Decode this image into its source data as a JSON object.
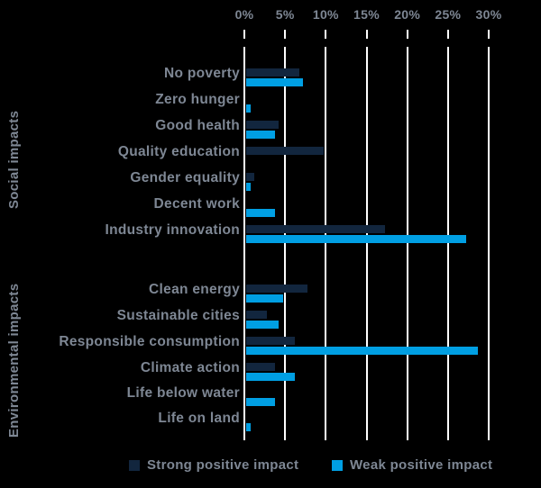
{
  "chart_data": {
    "type": "bar",
    "orientation": "horizontal",
    "x_axis": {
      "position": "top",
      "ticks": [
        "0%",
        "5%",
        "10%",
        "15%",
        "20%",
        "25%",
        "30%"
      ],
      "min": 0,
      "max": 30,
      "unit": "%"
    },
    "grid": true,
    "legend_position": "bottom",
    "series": [
      {
        "name": "Strong positive impact",
        "color": "#12263E"
      },
      {
        "name": "Weak positive impact",
        "color": "#009FE3"
      }
    ],
    "groups": [
      {
        "label": "Social impacts",
        "rows": [
          {
            "category": "No poverty",
            "strong": 6.5,
            "weak": 7
          },
          {
            "category": "Zero hunger",
            "strong": 0,
            "weak": 0.5
          },
          {
            "category": "Good health",
            "strong": 4,
            "weak": 3.5
          },
          {
            "category": "Quality education",
            "strong": 9.5,
            "weak": 0
          },
          {
            "category": "Gender equality",
            "strong": 1,
            "weak": 0.5
          },
          {
            "category": "Decent work",
            "strong": 0,
            "weak": 3.5
          },
          {
            "category": "Industry innovation",
            "strong": 17,
            "weak": 27
          }
        ]
      },
      {
        "label": "Environmental impacts",
        "rows": [
          {
            "category": "Clean energy",
            "strong": 7.5,
            "weak": 4.5
          },
          {
            "category": "Sustainable cities",
            "strong": 2.5,
            "weak": 4
          },
          {
            "category": "Responsible consumption",
            "strong": 6,
            "weak": 28.5
          },
          {
            "category": "Climate action",
            "strong": 3.5,
            "weak": 6
          },
          {
            "category": "Life below water",
            "strong": 0,
            "weak": 3.5
          },
          {
            "category": "Life on land",
            "strong": 0,
            "weak": 0.5
          }
        ]
      }
    ],
    "colors": {
      "background": "#000000",
      "text": "#7E8794",
      "gridline": "#FFFFFF",
      "strong_bar": "#12263E",
      "weak_bar": "#009FE3"
    }
  }
}
